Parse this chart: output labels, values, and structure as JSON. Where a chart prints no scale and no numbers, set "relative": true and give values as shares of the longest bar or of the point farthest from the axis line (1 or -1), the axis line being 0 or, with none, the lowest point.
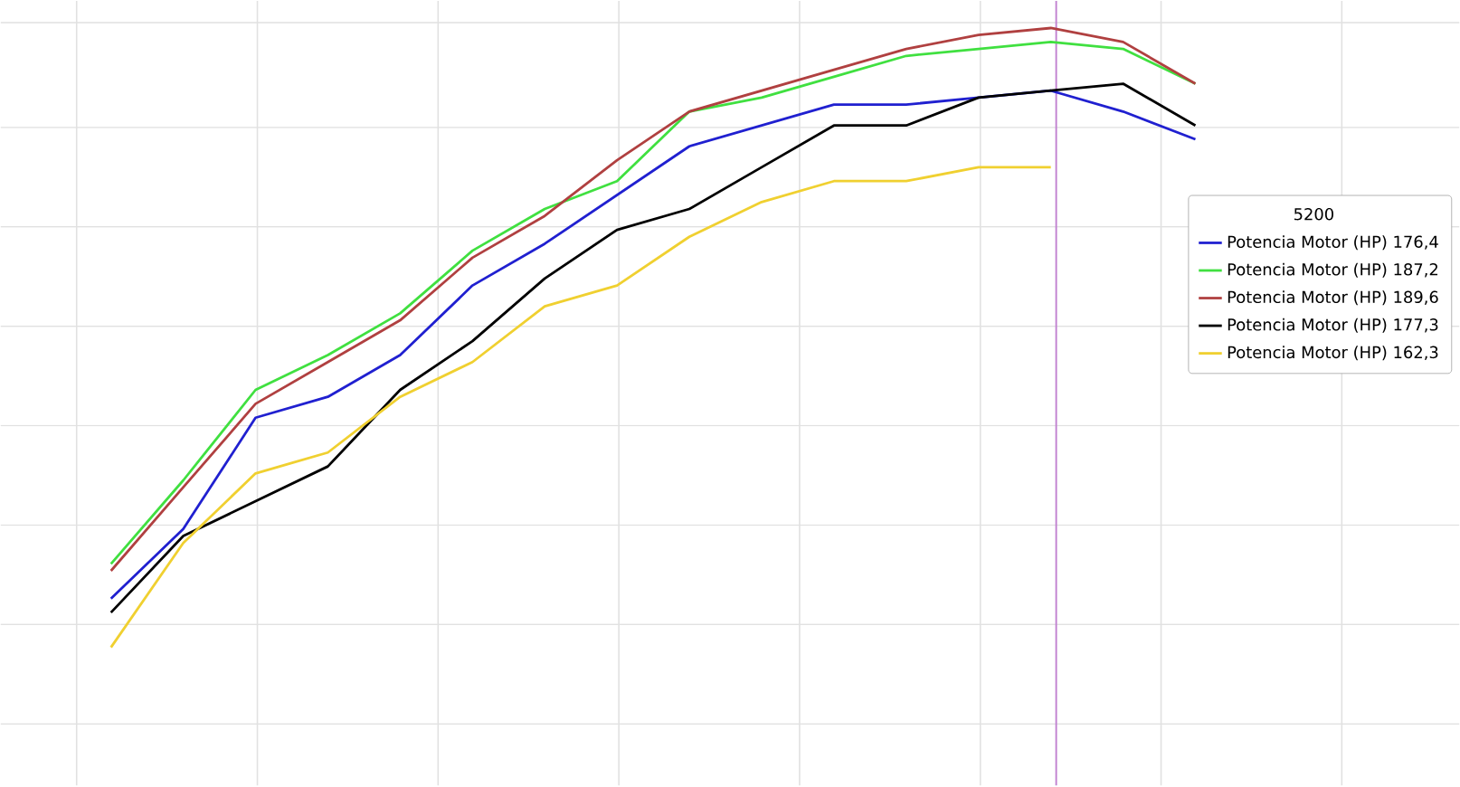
{
  "chart_data": {
    "type": "line",
    "relative": true,
    "grid": true,
    "legend": "right",
    "legend_title": "5200",
    "categories": [
      null,
      null,
      null,
      null,
      null,
      null,
      null,
      null,
      null,
      null,
      null,
      null,
      null,
      null,
      null,
      null
    ],
    "series": [
      {
        "name": "Potencia Motor (HP) 176,4",
        "color": "#2020d0",
        "values": [
          0.18,
          0.28,
          0.44,
          0.47,
          0.53,
          0.63,
          0.69,
          0.76,
          0.83,
          0.86,
          0.89,
          0.89,
          0.9,
          0.91,
          0.88,
          0.84
        ]
      },
      {
        "name": "Potencia Motor (HP) 187,2",
        "color": "#40e040",
        "values": [
          0.23,
          0.35,
          0.48,
          0.53,
          0.59,
          0.68,
          0.74,
          0.78,
          0.88,
          0.9,
          0.93,
          0.96,
          0.97,
          0.98,
          0.97,
          0.92
        ]
      },
      {
        "name": "Potencia Motor (HP) 189,6",
        "color": "#b04040",
        "values": [
          0.22,
          0.34,
          0.46,
          0.52,
          0.58,
          0.67,
          0.73,
          0.81,
          0.88,
          0.91,
          0.94,
          0.97,
          0.99,
          1.0,
          0.98,
          0.92
        ]
      },
      {
        "name": "Potencia Motor (HP) 177,3",
        "color": "#000000",
        "values": [
          0.16,
          0.27,
          0.32,
          0.37,
          0.48,
          0.55,
          0.64,
          0.71,
          0.74,
          0.8,
          0.86,
          0.86,
          0.9,
          0.91,
          0.92,
          0.86
        ]
      },
      {
        "name": "Potencia Motor (HP) 162,3",
        "color": "#f0d030",
        "values": [
          0.11,
          0.26,
          0.36,
          0.39,
          0.47,
          0.52,
          0.6,
          0.63,
          0.7,
          0.75,
          0.78,
          0.78,
          0.8,
          0.8,
          null,
          null
        ]
      }
    ]
  }
}
